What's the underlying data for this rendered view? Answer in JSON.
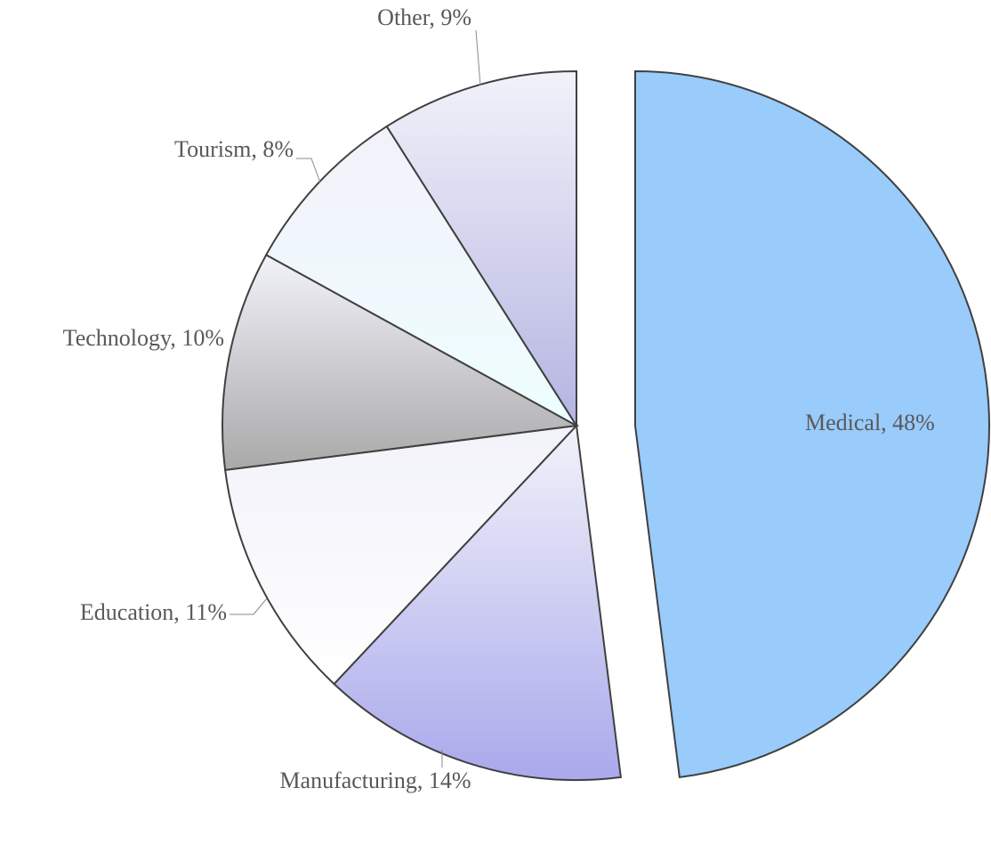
{
  "chart_data": {
    "type": "pie",
    "labels": [
      "Medical, 48%",
      "Manufacturing, 14%",
      "Education, 11%",
      "Technology, 10%",
      "Tourism, 8%",
      "Other, 9%"
    ],
    "values": [
      48,
      14,
      11,
      10,
      8,
      9
    ],
    "colors": [
      "#99cbfb",
      "#a9a9ec",
      "#ffffff",
      "#a9a9a9",
      "#eefeff",
      "#b4b4e2"
    ]
  }
}
